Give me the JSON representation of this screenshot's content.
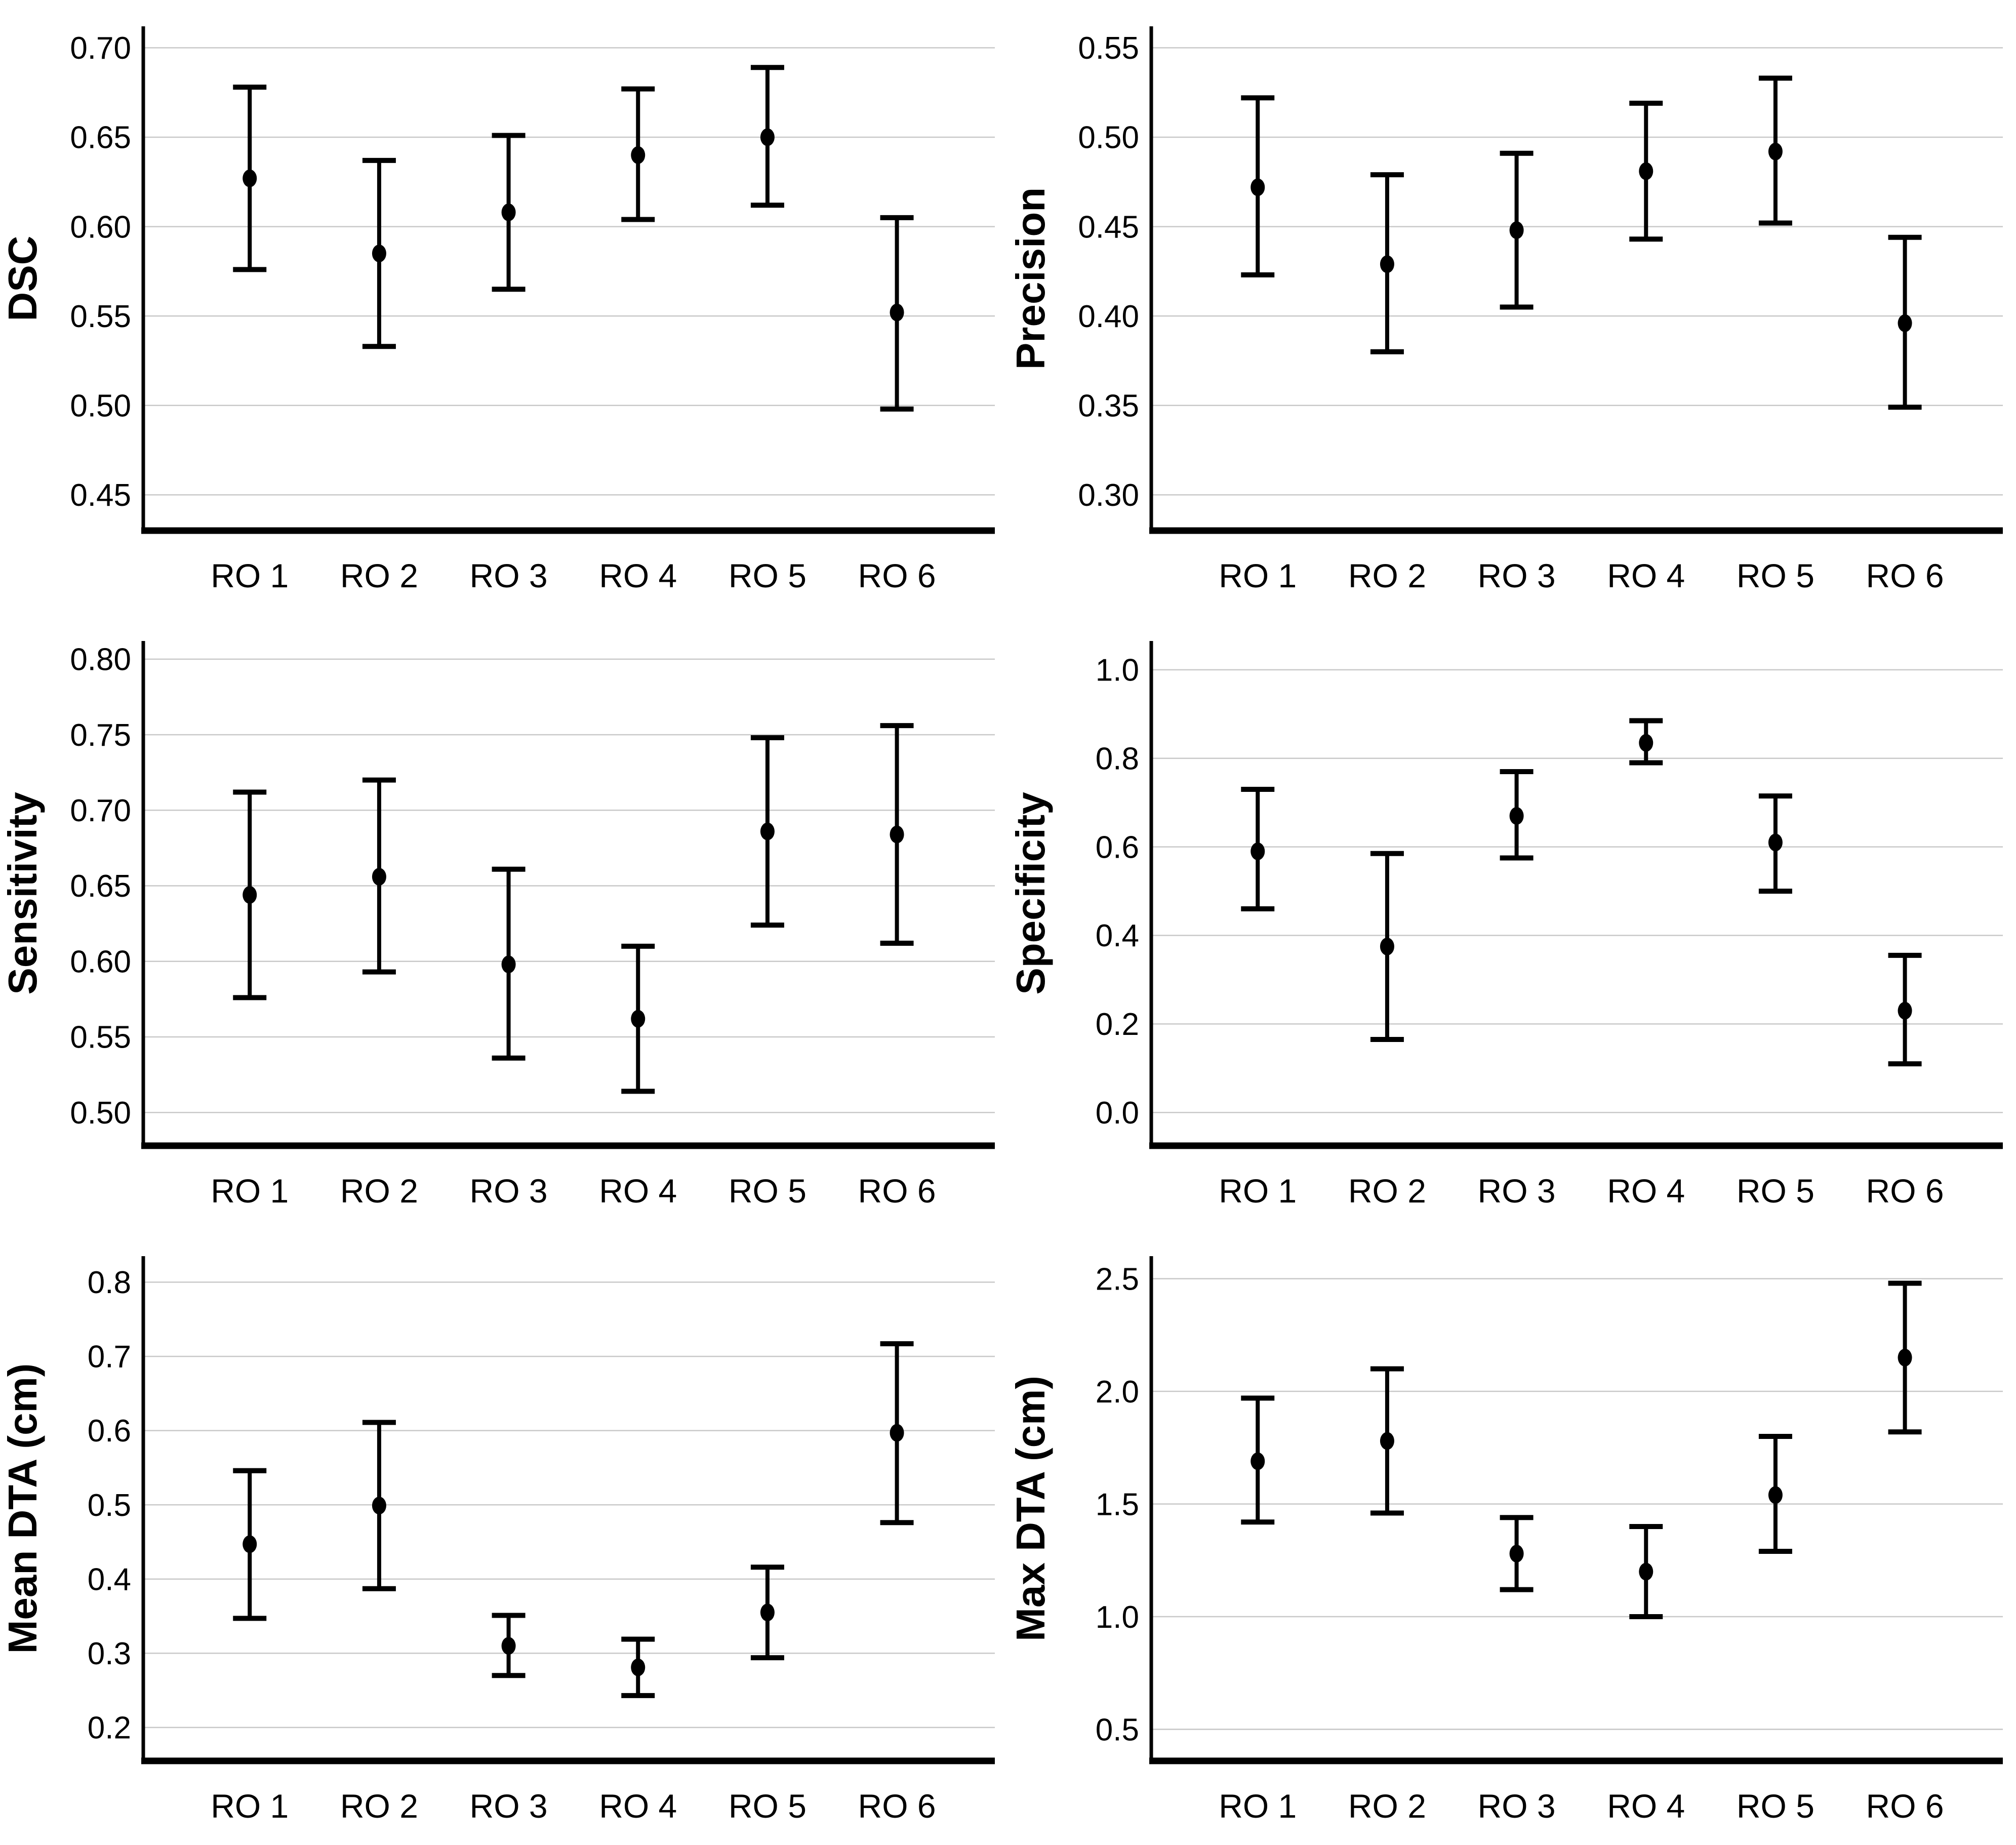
{
  "figure": {
    "background": "#ffffff",
    "grid_color": "#c9c9c9",
    "ink_color": "#000000",
    "layout": "3 rows x 2 columns of point-estimate charts with 95% CI error bars",
    "x_categories": [
      "RO 1",
      "RO 2",
      "RO 3",
      "RO 4",
      "RO 5",
      "RO 6"
    ]
  },
  "chart_data": [
    {
      "type": "scatter",
      "subtype": "point-with-ci-errorbars",
      "title": "",
      "xlabel": "",
      "ylabel": "DSC",
      "categories": [
        "RO 1",
        "RO 2",
        "RO 3",
        "RO 4",
        "RO 5",
        "RO 6"
      ],
      "mean": [
        0.627,
        0.585,
        0.608,
        0.64,
        0.65,
        0.552
      ],
      "ci_low": [
        0.576,
        0.533,
        0.565,
        0.604,
        0.612,
        0.498
      ],
      "ci_high": [
        0.678,
        0.637,
        0.651,
        0.677,
        0.689,
        0.605
      ],
      "yticks": [
        0.45,
        0.5,
        0.55,
        0.6,
        0.65,
        0.7
      ],
      "ytick_labels": [
        "0.45",
        "0.50",
        "0.55",
        "0.60",
        "0.65",
        "0.70"
      ],
      "ylim": [
        0.43,
        0.712
      ],
      "grid": true,
      "legend": "none"
    },
    {
      "type": "scatter",
      "subtype": "point-with-ci-errorbars",
      "title": "",
      "xlabel": "",
      "ylabel": "Precision",
      "categories": [
        "RO 1",
        "RO 2",
        "RO 3",
        "RO 4",
        "RO 5",
        "RO 6"
      ],
      "mean": [
        0.472,
        0.429,
        0.448,
        0.481,
        0.492,
        0.396
      ],
      "ci_low": [
        0.423,
        0.38,
        0.405,
        0.443,
        0.452,
        0.349
      ],
      "ci_high": [
        0.522,
        0.479,
        0.491,
        0.519,
        0.533,
        0.444
      ],
      "yticks": [
        0.3,
        0.35,
        0.4,
        0.45,
        0.5,
        0.55
      ],
      "ytick_labels": [
        "0.30",
        "0.35",
        "0.40",
        "0.45",
        "0.50",
        "0.55"
      ],
      "ylim": [
        0.28,
        0.562
      ],
      "grid": true,
      "legend": "none"
    },
    {
      "type": "scatter",
      "subtype": "point-with-ci-errorbars",
      "title": "",
      "xlabel": "",
      "ylabel": "Sensitivity",
      "categories": [
        "RO 1",
        "RO 2",
        "RO 3",
        "RO 4",
        "RO 5",
        "RO 6"
      ],
      "mean": [
        0.644,
        0.656,
        0.598,
        0.562,
        0.686,
        0.684
      ],
      "ci_low": [
        0.576,
        0.593,
        0.536,
        0.514,
        0.624,
        0.612
      ],
      "ci_high": [
        0.712,
        0.72,
        0.661,
        0.61,
        0.748,
        0.756
      ],
      "yticks": [
        0.5,
        0.55,
        0.6,
        0.65,
        0.7,
        0.75,
        0.8
      ],
      "ytick_labels": [
        "0.50",
        "0.55",
        "0.60",
        "0.65",
        "0.70",
        "0.75",
        "0.80"
      ],
      "ylim": [
        0.478,
        0.812
      ],
      "grid": true,
      "legend": "none"
    },
    {
      "type": "scatter",
      "subtype": "point-with-ci-errorbars",
      "title": "",
      "xlabel": "",
      "ylabel": "Specificity",
      "categories": [
        "RO 1",
        "RO 2",
        "RO 3",
        "RO 4",
        "RO 5",
        "RO 6"
      ],
      "mean": [
        0.59,
        0.375,
        0.67,
        0.835,
        0.61,
        0.23
      ],
      "ci_low": [
        0.46,
        0.165,
        0.575,
        0.79,
        0.5,
        0.11
      ],
      "ci_high": [
        0.73,
        0.585,
        0.77,
        0.885,
        0.715,
        0.355
      ],
      "yticks": [
        0.0,
        0.2,
        0.4,
        0.6,
        0.8,
        1.0
      ],
      "ytick_labels": [
        "0.0",
        "0.2",
        "0.4",
        "0.6",
        "0.8",
        "1.0"
      ],
      "ylim": [
        -0.075,
        1.065
      ],
      "grid": true,
      "legend": "none"
    },
    {
      "type": "scatter",
      "subtype": "point-with-ci-errorbars",
      "title": "",
      "xlabel": "",
      "ylabel": "Mean DTA (cm)",
      "categories": [
        "RO 1",
        "RO 2",
        "RO 3",
        "RO 4",
        "RO 5",
        "RO 6"
      ],
      "mean": [
        0.447,
        0.499,
        0.31,
        0.281,
        0.355,
        0.597
      ],
      "ci_low": [
        0.347,
        0.387,
        0.27,
        0.243,
        0.294,
        0.476
      ],
      "ci_high": [
        0.546,
        0.611,
        0.351,
        0.319,
        0.416,
        0.717
      ],
      "yticks": [
        0.2,
        0.3,
        0.4,
        0.5,
        0.6,
        0.7,
        0.8
      ],
      "ytick_labels": [
        "0.2",
        "0.3",
        "0.4",
        "0.5",
        "0.6",
        "0.7",
        "0.8"
      ],
      "ylim": [
        0.155,
        0.835
      ],
      "grid": true,
      "legend": "none"
    },
    {
      "type": "scatter",
      "subtype": "point-with-ci-errorbars",
      "title": "",
      "xlabel": "",
      "ylabel": "Max DTA (cm)",
      "categories": [
        "RO 1",
        "RO 2",
        "RO 3",
        "RO 4",
        "RO 5",
        "RO 6"
      ],
      "mean": [
        1.69,
        1.78,
        1.28,
        1.2,
        1.54,
        2.15
      ],
      "ci_low": [
        1.42,
        1.46,
        1.12,
        1.0,
        1.29,
        1.82
      ],
      "ci_high": [
        1.97,
        2.1,
        1.44,
        1.4,
        1.8,
        2.48
      ],
      "yticks": [
        0.5,
        1.0,
        1.5,
        2.0,
        2.5
      ],
      "ytick_labels": [
        "0.5",
        "1.0",
        "1.5",
        "2.0",
        "2.5"
      ],
      "ylim": [
        0.36,
        2.6
      ],
      "grid": true,
      "legend": "none"
    }
  ]
}
